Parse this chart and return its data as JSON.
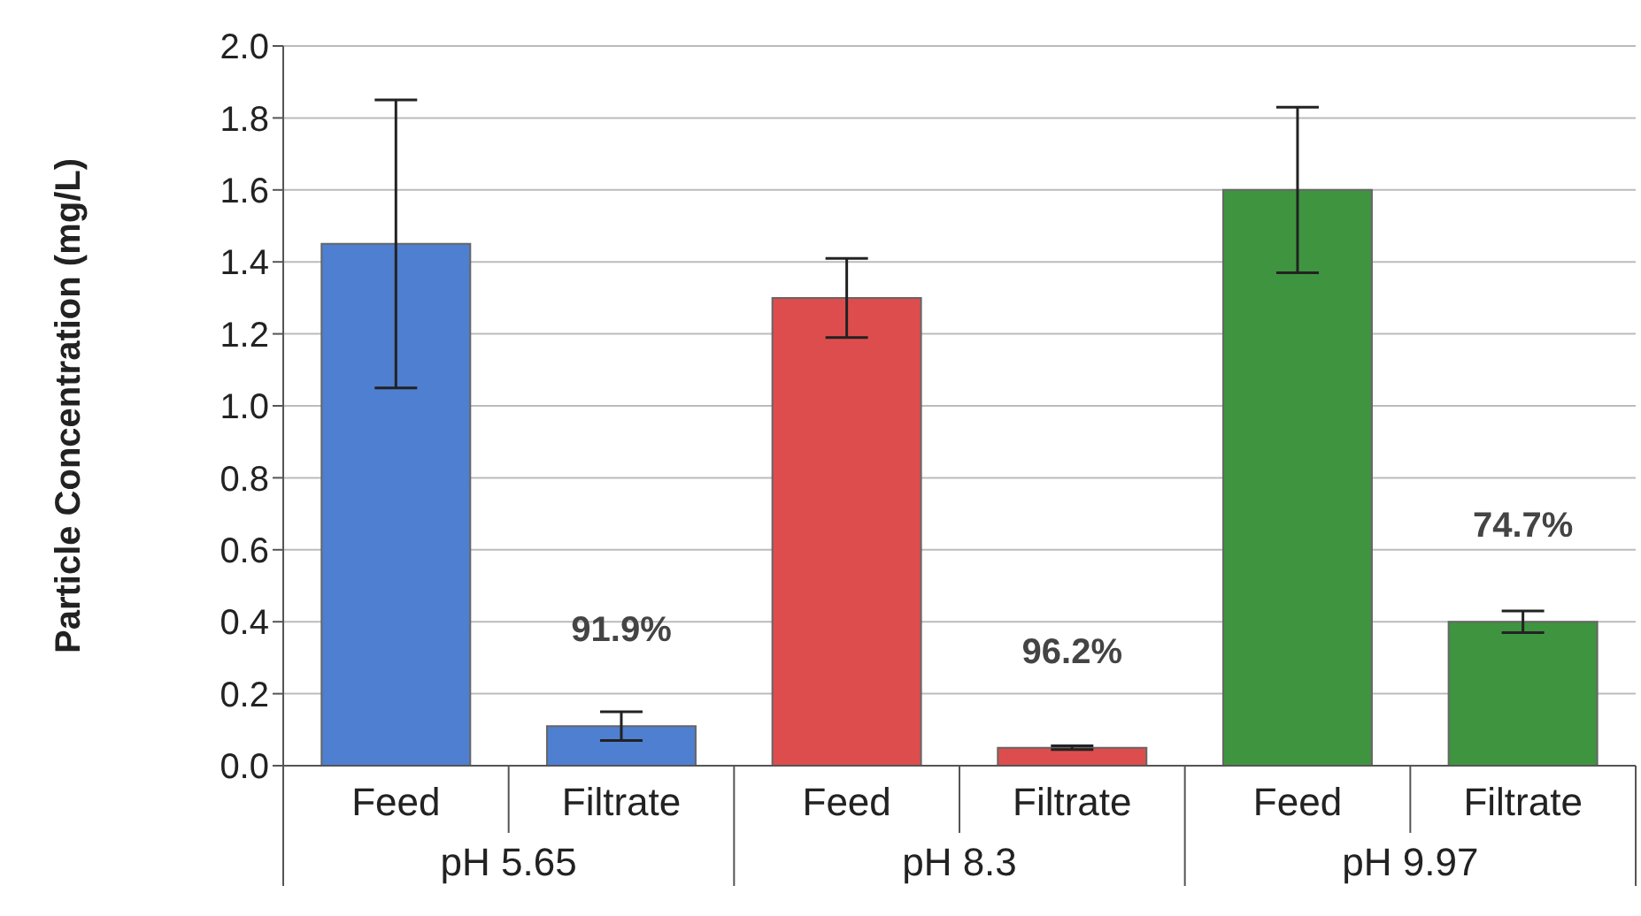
{
  "chart_data": {
    "type": "bar",
    "ylabel": "Particle Concentration (mg/L)",
    "categories": [
      "Feed",
      "Filtrate",
      "Feed",
      "Filtrate",
      "Feed",
      "Filtrate"
    ],
    "values": [
      1.45,
      0.11,
      1.3,
      0.05,
      1.6,
      0.4
    ],
    "errors": [
      0.4,
      0.04,
      0.11,
      0.005,
      0.23,
      0.03
    ],
    "colors": [
      "#4f7fd0",
      "#4f7fd0",
      "#de4d4d",
      "#de4d4d",
      "#3f9440",
      "#3f9440"
    ],
    "ylim": [
      0,
      2
    ],
    "yticks": [
      {
        "value": 0,
        "label": "0.0"
      },
      {
        "value": 0.2,
        "label": "0.2"
      },
      {
        "value": 0.4,
        "label": "0.4"
      },
      {
        "value": 0.6,
        "label": "0.6"
      },
      {
        "value": 0.8,
        "label": "0.8"
      },
      {
        "value": 1,
        "label": "1.0"
      },
      {
        "value": 1.2,
        "label": "1.2"
      },
      {
        "value": 1.4,
        "label": "1.4"
      },
      {
        "value": 1.6,
        "label": "1.6"
      },
      {
        "value": 1.8,
        "label": "1.8"
      },
      {
        "value": 2,
        "label": "2.0"
      }
    ],
    "grid": "y",
    "annotations": [
      "91.9%",
      "96.2%",
      "74.7%",
      "pH 5.65",
      "pH 8.3",
      "pH 9.97"
    ]
  }
}
